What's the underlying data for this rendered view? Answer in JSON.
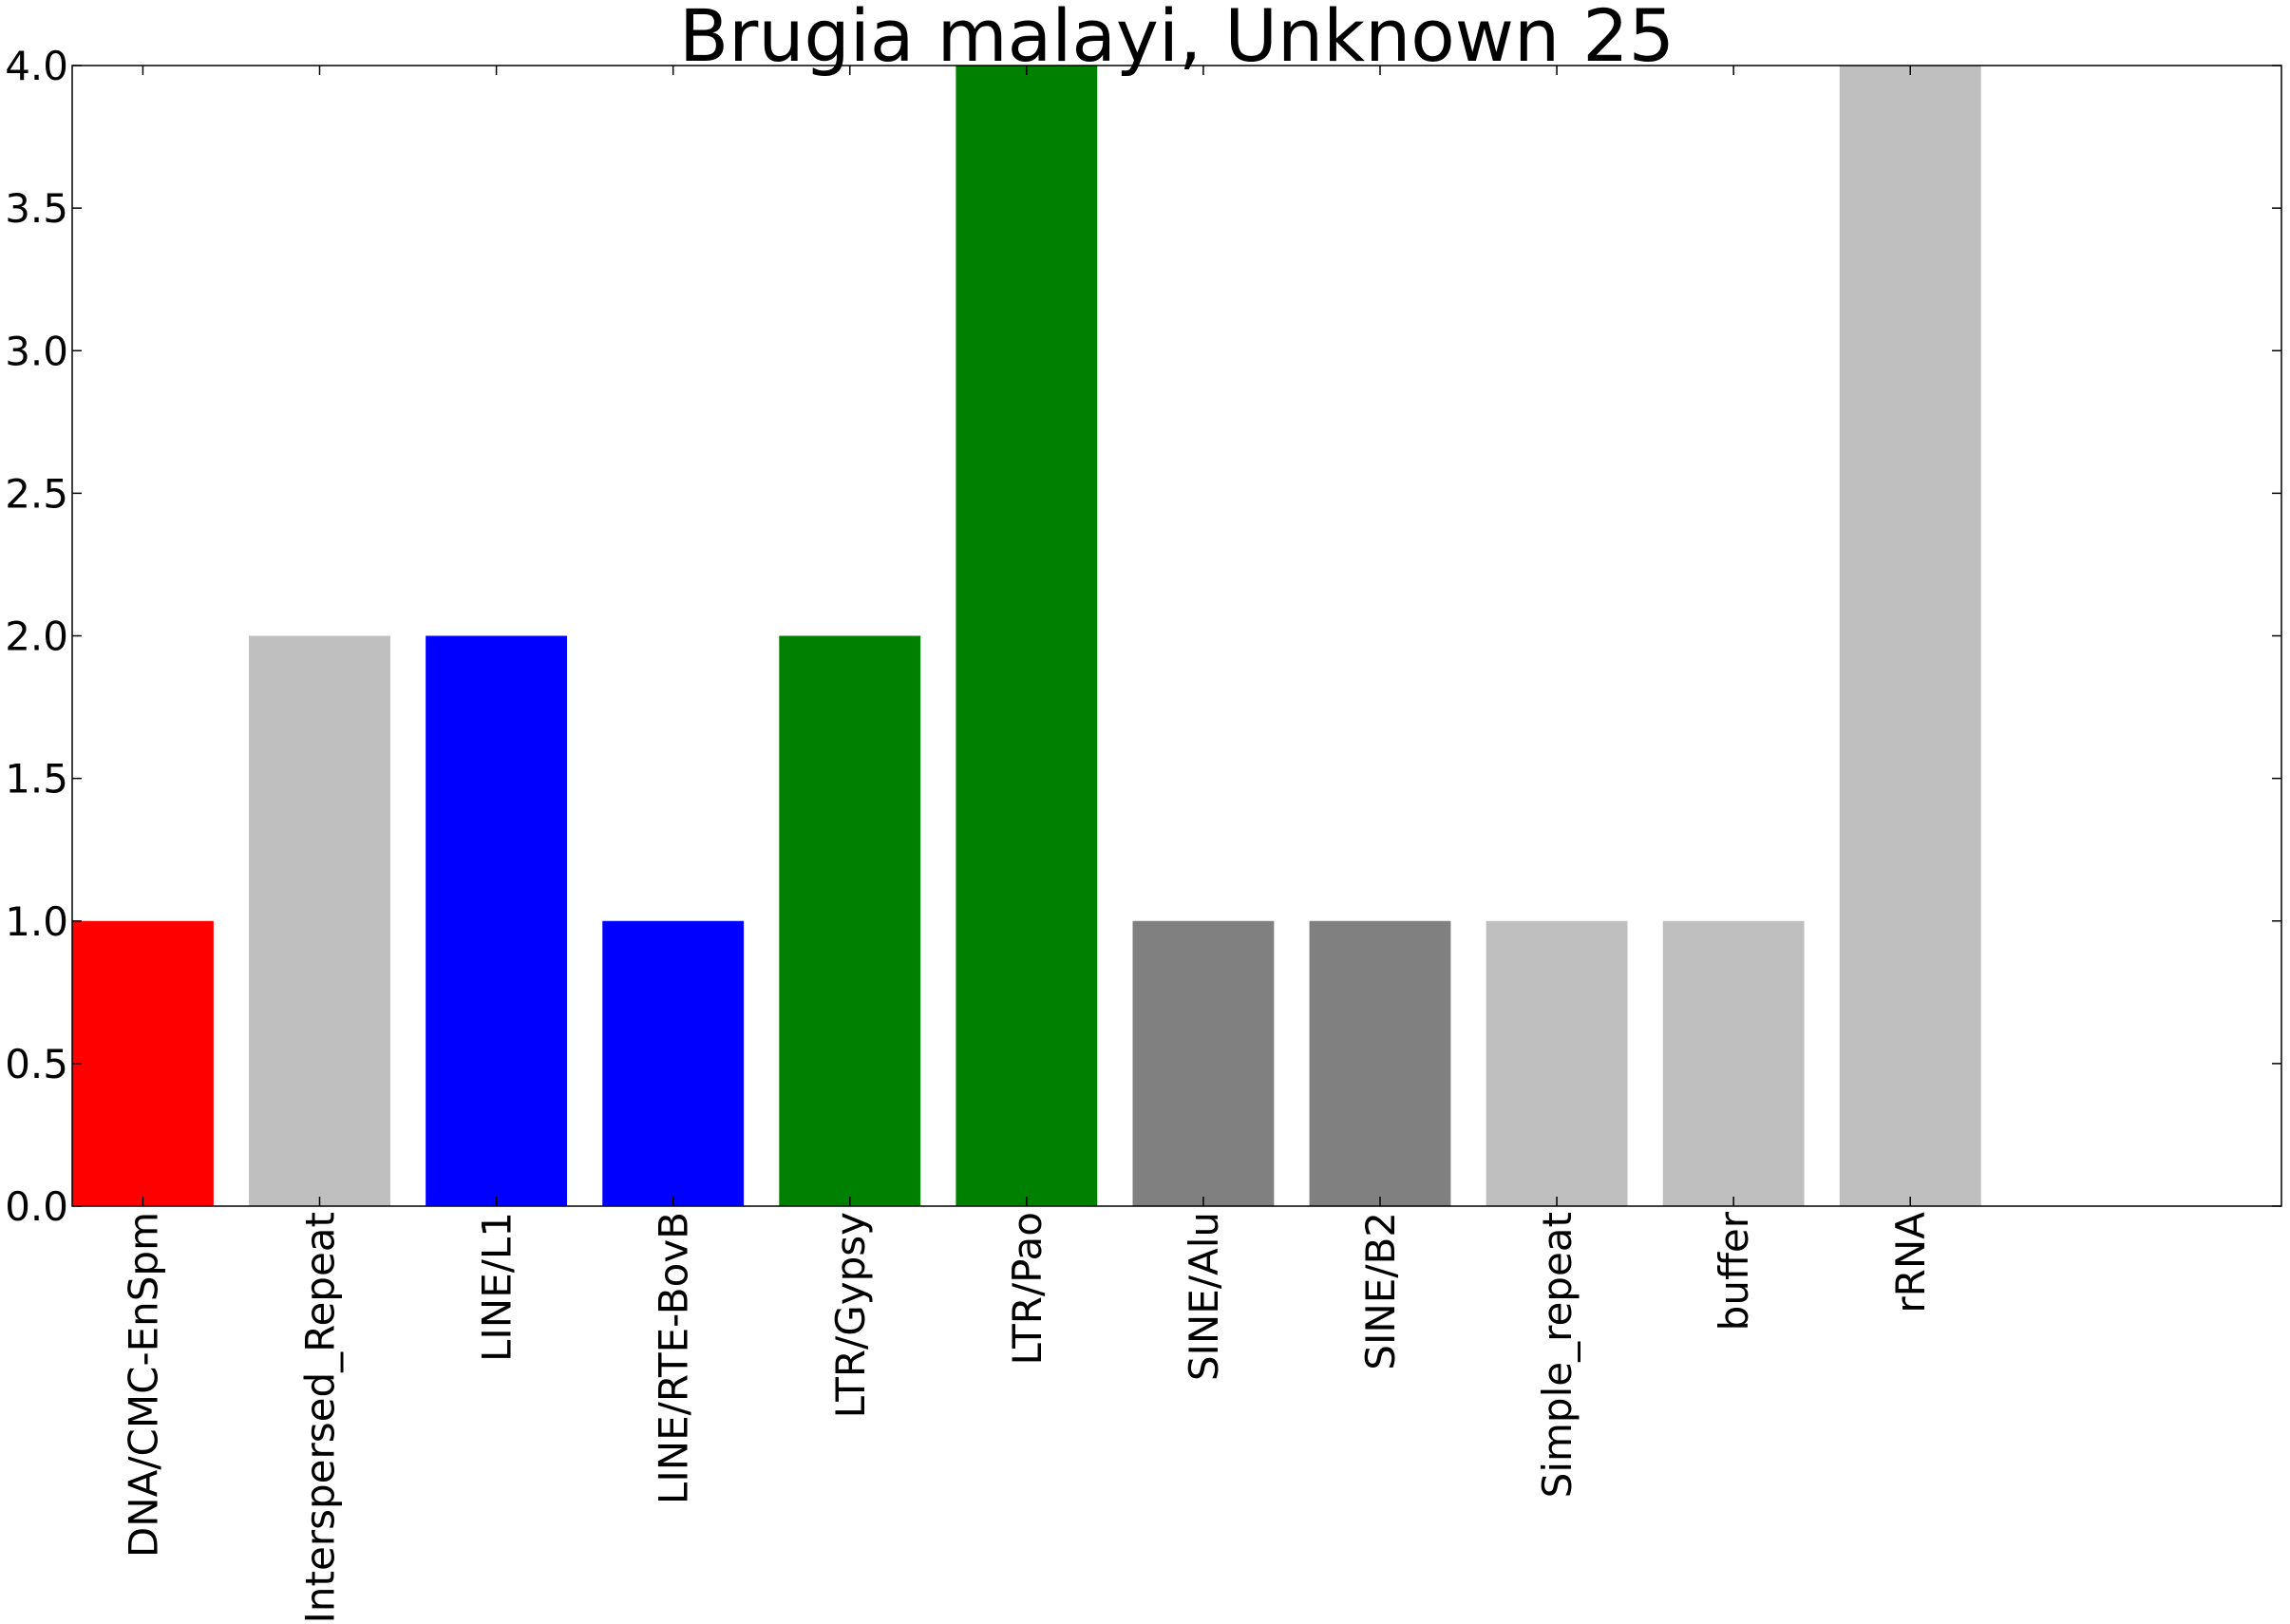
{
  "chart_data": {
    "type": "bar",
    "title": "Brugia malayi, Unknown 25",
    "xlabel": "",
    "ylabel": "",
    "ylim": [
      0,
      4.0
    ],
    "xlim": [
      0,
      12.5
    ],
    "bar_width": 0.8,
    "grid": false,
    "yticks": [
      "0.0",
      "0.5",
      "1.0",
      "1.5",
      "2.0",
      "2.5",
      "3.0",
      "3.5",
      "4.0"
    ],
    "categories": [
      "DNA/CMC-EnSpm",
      "Interspersed_Repeat",
      "LINE/L1",
      "LINE/RTE-BovB",
      "LTR/Gypsy",
      "LTR/Pao",
      "SINE/Alu",
      "SINE/B2",
      "Simple_repeat",
      "buffer",
      "rRNA"
    ],
    "values": [
      1,
      2,
      2,
      1,
      2,
      4,
      1,
      1,
      1,
      1,
      4
    ],
    "colors": [
      "#ff0000",
      "#bfbfbf",
      "#0000ff",
      "#0000ff",
      "#008000",
      "#008000",
      "#808080",
      "#808080",
      "#bfbfbf",
      "#bfbfbf",
      "#bfbfbf"
    ]
  }
}
